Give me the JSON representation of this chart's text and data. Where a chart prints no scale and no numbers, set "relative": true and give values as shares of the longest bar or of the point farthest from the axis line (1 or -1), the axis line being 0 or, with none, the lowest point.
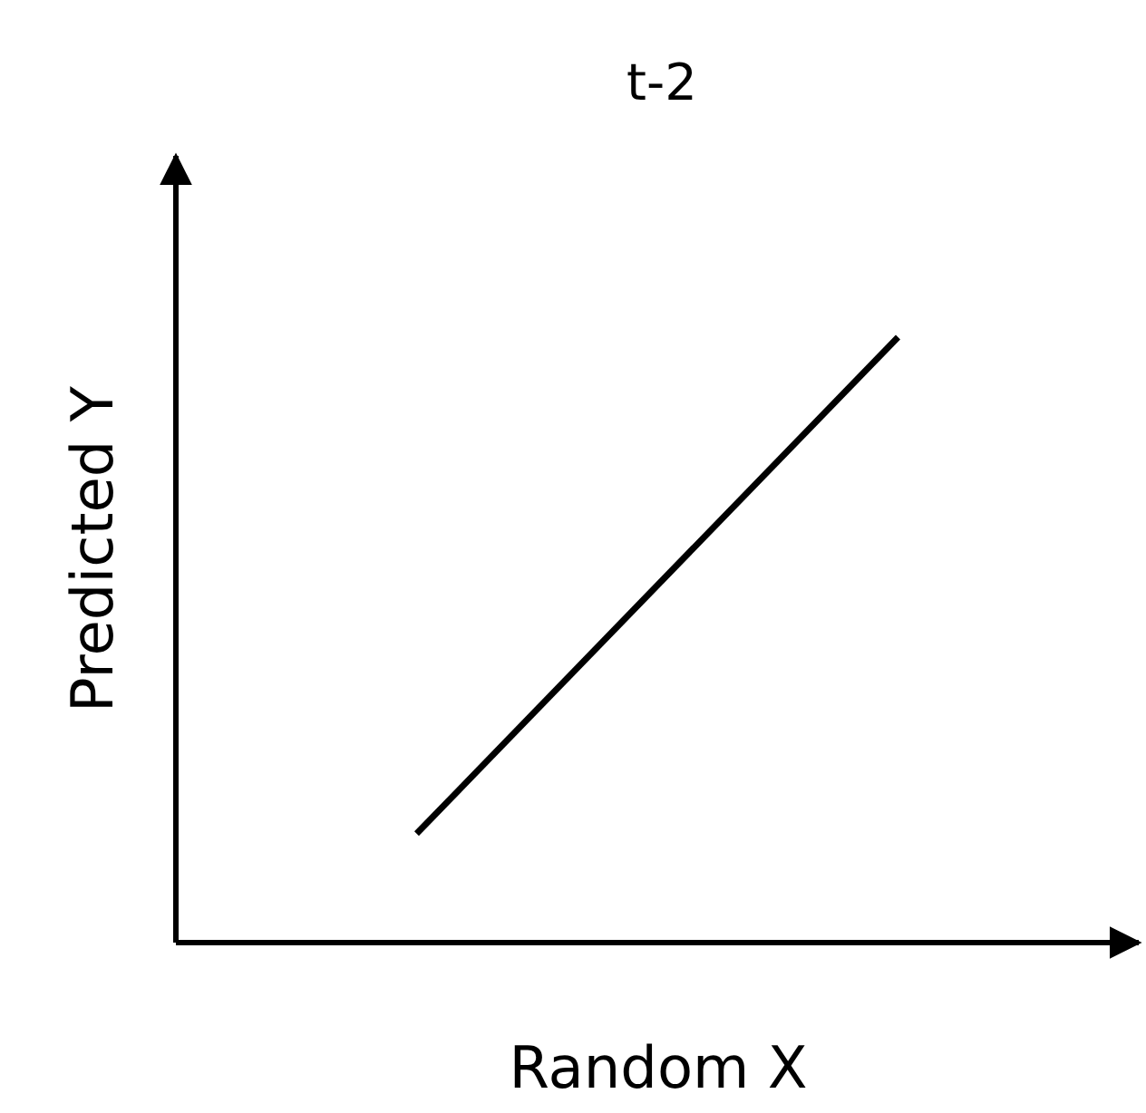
{
  "chart_data": {
    "type": "line",
    "title": "t-2",
    "xlabel": "Random X",
    "ylabel": "Predicted Y",
    "categories": [
      null,
      null
    ],
    "relative": true,
    "series": [
      {
        "color": "#000000",
        "values": [
          0.18,
          1
        ]
      }
    ],
    "grid": false,
    "marker": "none",
    "line_style": "solid"
  }
}
